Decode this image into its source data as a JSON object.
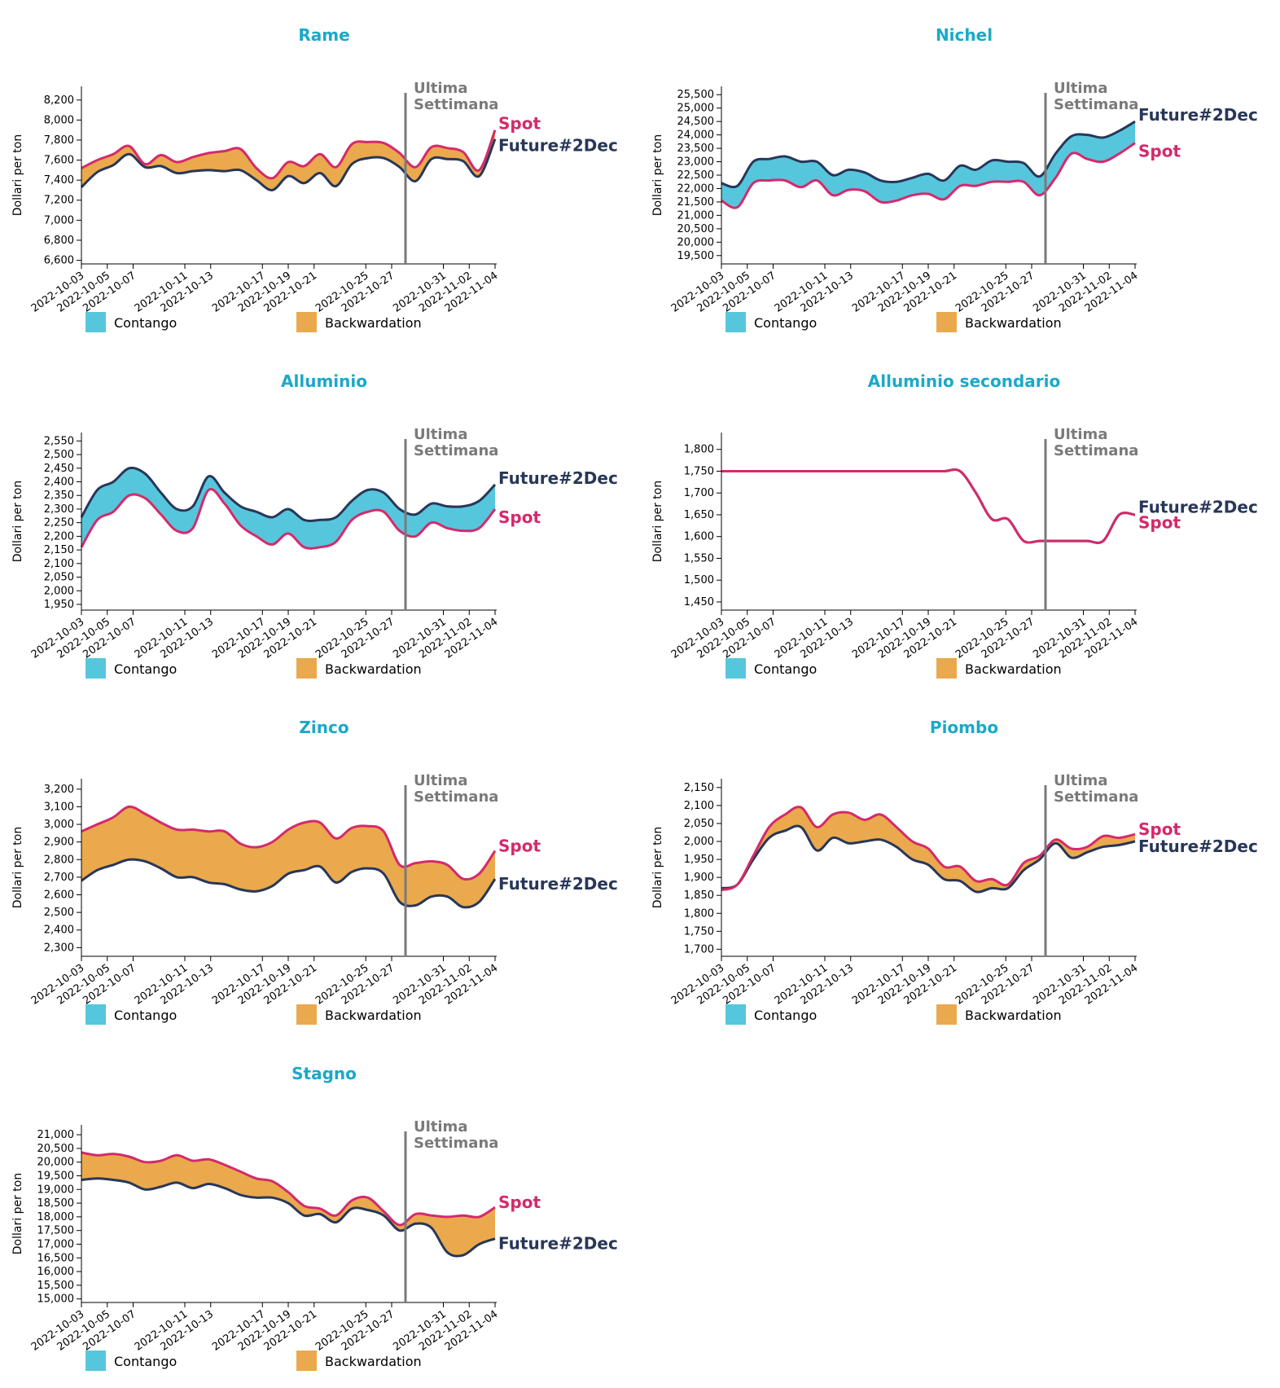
{
  "colors": {
    "title": "#1ba9c8",
    "spot": "#d42a6c",
    "future": "#283758",
    "contango": "#56c6dd",
    "backwardation": "#eaa94c",
    "week_line": "#7a7a7a",
    "week_text": "#7a7a7a"
  },
  "legend": {
    "contango": "Contango",
    "backwardation": "Backwardation"
  },
  "week_marker": {
    "line1": "Ultima",
    "line2": "Settimana",
    "at": "2022-10-29"
  },
  "chart_data": [
    {
      "type": "area",
      "title": "Rame",
      "ylabel": "Dollari per ton",
      "xlabel": "",
      "x_ticks": [
        "2022-10-03",
        "2022-10-05",
        "2022-10-07",
        "2022-10-11",
        "2022-10-13",
        "2022-10-17",
        "2022-10-19",
        "2022-10-21",
        "2022-10-25",
        "2022-10-27",
        "2022-10-31",
        "2022-11-02",
        "2022-11-04"
      ],
      "y_ticks": [
        6600,
        6800,
        7000,
        7200,
        7400,
        7600,
        7800,
        8000,
        8200
      ],
      "ylim": [
        6580,
        8320
      ],
      "series": [
        {
          "name": "Spot",
          "values": [
            7520,
            7600,
            7660,
            7740,
            7560,
            7650,
            7580,
            7630,
            7670,
            7690,
            7710,
            7520,
            7420,
            7580,
            7540,
            7660,
            7530,
            7760,
            7780,
            7770,
            7670,
            7530,
            7730,
            7720,
            7680,
            7500,
            7900
          ]
        },
        {
          "name": "Future#2Dec",
          "values": [
            7330,
            7480,
            7550,
            7660,
            7530,
            7540,
            7470,
            7490,
            7500,
            7490,
            7500,
            7400,
            7300,
            7440,
            7370,
            7470,
            7340,
            7560,
            7620,
            7620,
            7530,
            7390,
            7610,
            7610,
            7590,
            7440,
            7810
          ]
        }
      ],
      "spot_label_dy": -8,
      "future_label_dy": 8
    },
    {
      "type": "area",
      "title": "Nichel",
      "ylabel": "Dollari per ton",
      "xlabel": "",
      "x_ticks": [
        "2022-10-03",
        "2022-10-05",
        "2022-10-07",
        "2022-10-11",
        "2022-10-13",
        "2022-10-17",
        "2022-10-19",
        "2022-10-21",
        "2022-10-25",
        "2022-10-27",
        "2022-10-31",
        "2022-11-02",
        "2022-11-04"
      ],
      "y_ticks": [
        19500,
        20000,
        20500,
        21000,
        21500,
        22000,
        22500,
        23000,
        23500,
        24000,
        24500,
        25000,
        25500
      ],
      "ylim": [
        19250,
        25750
      ],
      "series": [
        {
          "name": "Spot",
          "values": [
            21550,
            21300,
            22200,
            22300,
            22300,
            22050,
            22300,
            21750,
            21950,
            21900,
            21500,
            21550,
            21750,
            21800,
            21600,
            22100,
            22100,
            22250,
            22250,
            22250,
            21750,
            22400,
            23300,
            23100,
            23000,
            23300,
            23700
          ]
        },
        {
          "name": "Future#2Dec",
          "values": [
            22200,
            22100,
            23000,
            23100,
            23200,
            23000,
            23000,
            22500,
            22700,
            22600,
            22300,
            22250,
            22400,
            22550,
            22300,
            22850,
            22700,
            23050,
            23000,
            22950,
            22450,
            23300,
            23950,
            24000,
            23900,
            24150,
            24500
          ]
        }
      ],
      "spot_label_dy": 10,
      "future_label_dy": -8
    },
    {
      "type": "area",
      "title": "Alluminio",
      "ylabel": "Dollari per ton",
      "xlabel": "",
      "x_ticks": [
        "2022-10-03",
        "2022-10-05",
        "2022-10-07",
        "2022-10-11",
        "2022-10-13",
        "2022-10-17",
        "2022-10-19",
        "2022-10-21",
        "2022-10-25",
        "2022-10-27",
        "2022-10-31",
        "2022-11-02",
        "2022-11-04"
      ],
      "y_ticks": [
        1950,
        2000,
        2050,
        2100,
        2150,
        2200,
        2250,
        2300,
        2350,
        2400,
        2450,
        2500,
        2550
      ],
      "ylim": [
        1935,
        2575
      ],
      "series": [
        {
          "name": "Spot",
          "values": [
            2160,
            2260,
            2290,
            2350,
            2340,
            2280,
            2220,
            2230,
            2370,
            2320,
            2240,
            2200,
            2170,
            2210,
            2160,
            2160,
            2180,
            2260,
            2290,
            2290,
            2220,
            2200,
            2250,
            2230,
            2220,
            2230,
            2300
          ]
        },
        {
          "name": "Future#2Dec",
          "values": [
            2270,
            2370,
            2400,
            2450,
            2430,
            2360,
            2300,
            2310,
            2420,
            2360,
            2310,
            2290,
            2270,
            2300,
            2260,
            2260,
            2270,
            2330,
            2370,
            2360,
            2300,
            2280,
            2320,
            2310,
            2310,
            2330,
            2390
          ]
        }
      ],
      "spot_label_dy": 10,
      "future_label_dy": -8
    },
    {
      "type": "area",
      "title": "Alluminio secondario",
      "ylabel": "Dollari per ton",
      "xlabel": "",
      "x_ticks": [
        "2022-10-03",
        "2022-10-05",
        "2022-10-07",
        "2022-10-11",
        "2022-10-13",
        "2022-10-17",
        "2022-10-19",
        "2022-10-21",
        "2022-10-25",
        "2022-10-27",
        "2022-10-31",
        "2022-11-02",
        "2022-11-04"
      ],
      "y_ticks": [
        1450,
        1500,
        1550,
        1600,
        1650,
        1700,
        1750,
        1800
      ],
      "ylim": [
        1435,
        1835
      ],
      "series": [
        {
          "name": "Spot",
          "values": [
            1750,
            1750,
            1750,
            1750,
            1750,
            1750,
            1750,
            1750,
            1750,
            1750,
            1750,
            1750,
            1750,
            1750,
            1750,
            1750,
            1700,
            1640,
            1640,
            1590,
            1590,
            1590,
            1590,
            1590,
            1590,
            1650,
            1650
          ]
        },
        {
          "name": "Future#2Dec",
          "values": [
            1750,
            1750,
            1750,
            1750,
            1750,
            1750,
            1750,
            1750,
            1750,
            1750,
            1750,
            1750,
            1750,
            1750,
            1750,
            1750,
            1700,
            1640,
            1640,
            1590,
            1590,
            1590,
            1590,
            1590,
            1590,
            1650,
            1650
          ]
        }
      ],
      "spot_label_dy": 7,
      "future_label_dy": -7
    },
    {
      "type": "area",
      "title": "Zinco",
      "ylabel": "Dollari per ton",
      "xlabel": "",
      "x_ticks": [
        "2022-10-03",
        "2022-10-05",
        "2022-10-07",
        "2022-10-11",
        "2022-10-13",
        "2022-10-17",
        "2022-10-19",
        "2022-10-21",
        "2022-10-25",
        "2022-10-27",
        "2022-10-31",
        "2022-11-02",
        "2022-11-04"
      ],
      "y_ticks": [
        2300,
        2400,
        2500,
        2600,
        2700,
        2800,
        2900,
        3000,
        3100,
        3200
      ],
      "ylim": [
        2260,
        3250
      ],
      "series": [
        {
          "name": "Spot",
          "values": [
            2960,
            3000,
            3040,
            3100,
            3060,
            3010,
            2970,
            2970,
            2960,
            2960,
            2890,
            2870,
            2900,
            2970,
            3010,
            3010,
            2920,
            2980,
            2990,
            2960,
            2770,
            2780,
            2790,
            2770,
            2690,
            2720,
            2850
          ]
        },
        {
          "name": "Future#2Dec",
          "values": [
            2680,
            2740,
            2770,
            2800,
            2790,
            2750,
            2700,
            2700,
            2670,
            2660,
            2630,
            2620,
            2650,
            2720,
            2740,
            2760,
            2670,
            2730,
            2750,
            2720,
            2560,
            2540,
            2590,
            2590,
            2530,
            2560,
            2690
          ]
        }
      ],
      "spot_label_dy": -6,
      "future_label_dy": 6
    },
    {
      "type": "area",
      "title": "Piombo",
      "ylabel": "Dollari per ton",
      "xlabel": "",
      "x_ticks": [
        "2022-10-03",
        "2022-10-05",
        "2022-10-07",
        "2022-10-11",
        "2022-10-13",
        "2022-10-17",
        "2022-10-19",
        "2022-10-21",
        "2022-10-25",
        "2022-10-27",
        "2022-10-31",
        "2022-11-02",
        "2022-11-04"
      ],
      "y_ticks": [
        1700,
        1750,
        1800,
        1850,
        1900,
        1950,
        2000,
        2050,
        2100,
        2150
      ],
      "ylim": [
        1685,
        2170
      ],
      "series": [
        {
          "name": "Spot",
          "values": [
            1865,
            1880,
            1960,
            2040,
            2075,
            2095,
            2040,
            2075,
            2080,
            2060,
            2075,
            2040,
            2000,
            1980,
            1930,
            1930,
            1890,
            1895,
            1880,
            1940,
            1960,
            2005,
            1980,
            1985,
            2015,
            2010,
            2020
          ]
        },
        {
          "name": "Future#2Dec",
          "values": [
            1870,
            1880,
            1950,
            2010,
            2030,
            2040,
            1975,
            2010,
            1995,
            2000,
            2005,
            1985,
            1950,
            1935,
            1895,
            1890,
            1860,
            1870,
            1870,
            1920,
            1950,
            1995,
            1955,
            1970,
            1985,
            1990,
            2000
          ]
        }
      ],
      "spot_label_dy": -6,
      "future_label_dy": 6
    },
    {
      "type": "area",
      "title": "Stagno",
      "ylabel": "Dollari per ton",
      "xlabel": "",
      "x_ticks": [
        "2022-10-03",
        "2022-10-05",
        "2022-10-07",
        "2022-10-11",
        "2022-10-13",
        "2022-10-17",
        "2022-10-19",
        "2022-10-21",
        "2022-10-25",
        "2022-10-27",
        "2022-10-31",
        "2022-11-02",
        "2022-11-04"
      ],
      "y_ticks": [
        15000,
        15500,
        16000,
        16500,
        17000,
        17500,
        18000,
        18500,
        19000,
        19500,
        20000,
        20500,
        21000
      ],
      "ylim": [
        14930,
        21300
      ],
      "series": [
        {
          "name": "Spot",
          "values": [
            20350,
            20250,
            20300,
            20200,
            20000,
            20050,
            20250,
            20050,
            20100,
            19900,
            19650,
            19400,
            19300,
            18900,
            18400,
            18300,
            18050,
            18600,
            18700,
            18200,
            17700,
            18100,
            18050,
            18000,
            18050,
            18000,
            18350
          ]
        },
        {
          "name": "Future#2Dec",
          "values": [
            19350,
            19400,
            19350,
            19250,
            19000,
            19100,
            19250,
            19050,
            19200,
            19050,
            18800,
            18700,
            18700,
            18500,
            18050,
            18100,
            17800,
            18300,
            18250,
            18050,
            17500,
            17750,
            17600,
            16700,
            16600,
            17000,
            17200
          ]
        }
      ],
      "spot_label_dy": -6,
      "future_label_dy": 6
    }
  ]
}
